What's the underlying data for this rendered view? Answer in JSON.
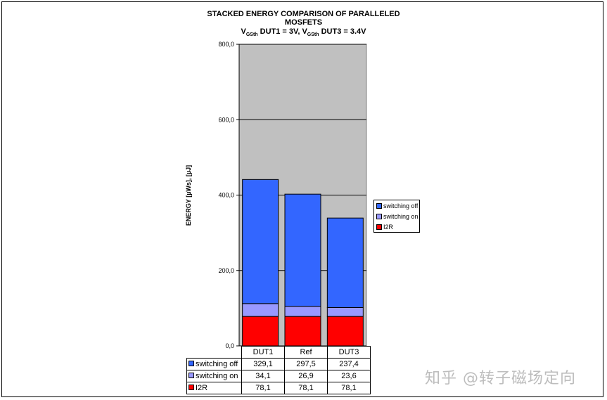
{
  "chart_data": {
    "type": "bar",
    "stacked": true,
    "title_line1": "STACKED ENERGY COMPARISON OF PARALLELED",
    "title_line2": "MOSFETS",
    "subtitle_parts": [
      {
        "text": "V",
        "sub": "GSth",
        "rest": " DUT1 = 3V, "
      },
      {
        "text": "V",
        "sub": "GSth",
        "rest": " DUT3 = 3.4V"
      }
    ],
    "ylabel": "ENERGY [µWs], [µJ]",
    "ylim": [
      0,
      800
    ],
    "yticks": [
      "0,0",
      "200,0",
      "400,0",
      "600,0",
      "800,0"
    ],
    "ytick_values": [
      0,
      200,
      400,
      600,
      800
    ],
    "grid": true,
    "legend_position": "right",
    "categories": [
      "DUT1",
      "Ref",
      "DUT3"
    ],
    "series": [
      {
        "name": "I2R",
        "values": [
          78.1,
          78.1,
          78.1
        ],
        "display": [
          "78,1",
          "78,1",
          "78,1"
        ],
        "color": "#ff0000"
      },
      {
        "name": "switching on",
        "values": [
          34.1,
          26.9,
          23.6
        ],
        "display": [
          "34,1",
          "26,9",
          "23,6"
        ],
        "color": "#9999ff"
      },
      {
        "name": "switching off",
        "values": [
          329.1,
          297.5,
          237.4
        ],
        "display": [
          "329,1",
          "297,5",
          "237,4"
        ],
        "color": "#3366ff"
      }
    ],
    "plot_background": "#c0c0c0"
  },
  "watermark": "知乎 @转子磁场定向"
}
